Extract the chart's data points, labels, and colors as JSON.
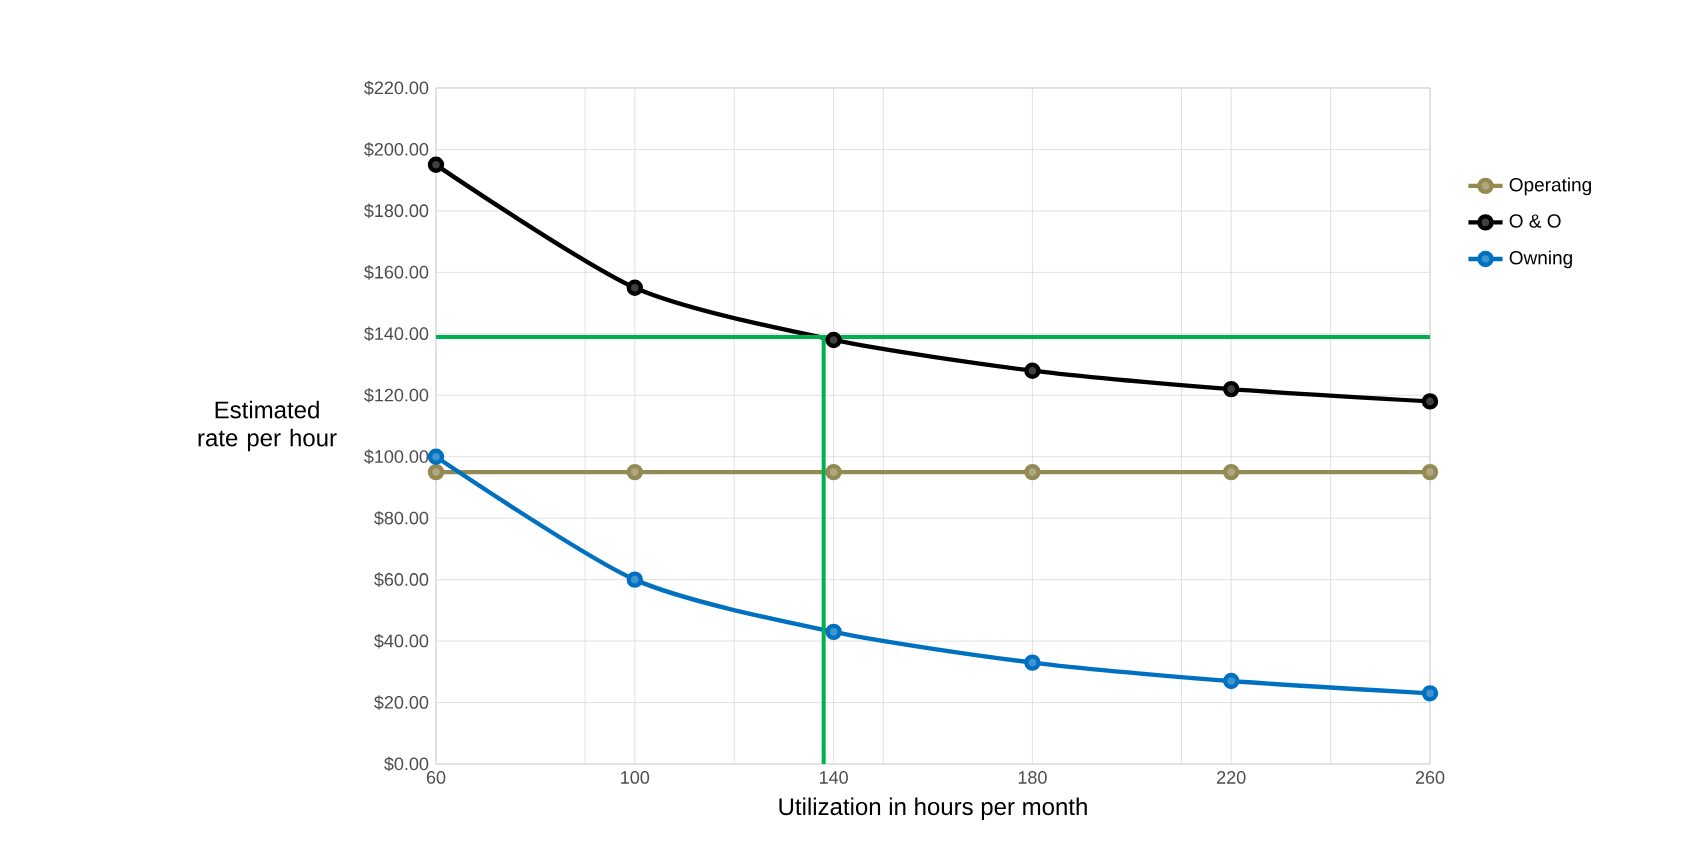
{
  "chart_data": {
    "type": "line",
    "xlabel": "Utilization in hours per month",
    "ylabel": "Estimated rate per hour",
    "x": [
      60,
      100,
      140,
      180,
      220,
      260
    ],
    "xlim": [
      60,
      260
    ],
    "xticks": [
      60,
      {
        "value": 90,
        "label": null
      },
      100,
      {
        "value": 120,
        "label": null
      },
      140,
      {
        "value": 150,
        "label": null
      },
      180,
      {
        "value": 210,
        "label": null
      },
      220,
      {
        "value": 240,
        "label": null
      },
      260
    ],
    "ylim": [
      0,
      220
    ],
    "yticks": [
      {
        "value": 0,
        "label": "$0.00"
      },
      {
        "value": 20,
        "label": "$20.00"
      },
      {
        "value": 40,
        "label": "$40.00"
      },
      {
        "value": 60,
        "label": "$60.00"
      },
      {
        "value": 80,
        "label": "$80.00"
      },
      {
        "value": 100,
        "label": "$100.00"
      },
      {
        "value": 120,
        "label": "$120.00"
      },
      {
        "value": 140,
        "label": "$140.00"
      },
      {
        "value": 160,
        "label": "$160.00"
      },
      {
        "value": 180,
        "label": "$180.00"
      },
      {
        "value": 200,
        "label": "$200.00"
      },
      {
        "value": 220,
        "label": "$220.00"
      }
    ],
    "grid": true,
    "legend": "right",
    "marker": "circle",
    "line_style": "solid",
    "series": [
      {
        "name": "Operating",
        "color": "#948a54",
        "values": [
          95,
          95,
          95,
          95,
          95,
          95
        ]
      },
      {
        "name": "O & O",
        "color": "#000000",
        "values": [
          195,
          155,
          138,
          128,
          122,
          118
        ]
      },
      {
        "name": "Owning",
        "color": "#0070c0",
        "values": [
          100,
          60,
          43,
          33,
          27,
          23
        ]
      }
    ],
    "ref_lines": [
      {
        "axis": "y",
        "value": 139,
        "color": "#00b050"
      },
      {
        "axis": "x",
        "value": 138,
        "color": "#00b050"
      }
    ]
  }
}
